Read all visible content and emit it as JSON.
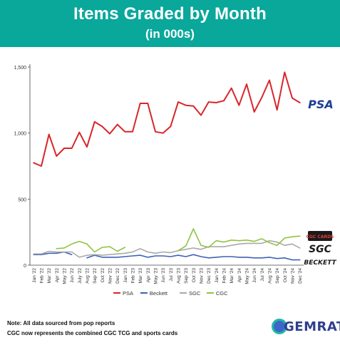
{
  "header": {
    "title": "Items Graded by Month",
    "subtitle": "(in 000s)"
  },
  "notes": [
    "Note: All data sourced from pop reports",
    "CGC now represents the combined CGC TCG and sports cards"
  ],
  "brand": {
    "logo_text": "GEMRATE"
  },
  "logos": {
    "psa": "PSA",
    "cgc": "CGC CARDS",
    "sgc": "SGC",
    "beckett": "BECKETT"
  },
  "colors": {
    "header": "#0aa79b",
    "PSA": "#d8262b",
    "Beckett": "#3f62b7",
    "SGC": "#a9a9a9",
    "CGC": "#8fc441"
  },
  "chart_data": {
    "type": "line",
    "title": "",
    "xlabel": "",
    "ylabel": "",
    "ylim": [
      0,
      1500
    ],
    "yticks": [
      "0",
      "500",
      "1,000",
      "1,500"
    ],
    "legend_position": "bottom",
    "grid": false,
    "categories": [
      "Jan '22",
      "Feb '22",
      "Mar '22",
      "Apr '22",
      "May '22",
      "Jun '22",
      "July '22",
      "Aug '22",
      "Sep '22",
      "Oct '22",
      "Nov '22",
      "Dec '22",
      "Jan '23",
      "Feb '23",
      "Mar '23",
      "Apr '23",
      "May '23",
      "Jun '23",
      "Jul '23",
      "Aug '23",
      "Sep '23",
      "Oct '23",
      "Nov '23",
      "Dec '23",
      "Jan '24",
      "Feb '24",
      "Mar '24",
      "Apr '24",
      "May '24",
      "Jun '24",
      "Jul '24",
      "Aug '24",
      "Sep '24",
      "Oct '24",
      "Nov '24",
      "Dec '24"
    ],
    "series": [
      {
        "name": "PSA",
        "values": [
          775,
          750,
          990,
          825,
          885,
          885,
          1005,
          895,
          1085,
          1050,
          995,
          1065,
          1010,
          1010,
          1225,
          1225,
          1010,
          1000,
          1050,
          1235,
          1210,
          1205,
          1135,
          1235,
          1230,
          1245,
          1340,
          1210,
          1370,
          1160,
          1270,
          1400,
          1175,
          1460,
          1265,
          1230
        ]
      },
      {
        "name": "Beckett",
        "values": [
          80,
          80,
          90,
          90,
          100,
          80,
          null,
          55,
          75,
          60,
          60,
          60,
          65,
          70,
          75,
          60,
          70,
          70,
          65,
          75,
          65,
          80,
          65,
          55,
          60,
          65,
          65,
          60,
          60,
          55,
          55,
          60,
          50,
          55,
          40,
          40
        ]
      },
      {
        "name": "SGC",
        "values": [
          85,
          85,
          105,
          100,
          100,
          100,
          60,
          75,
          80,
          75,
          80,
          85,
          90,
          100,
          125,
          100,
          90,
          100,
          95,
          110,
          120,
          130,
          120,
          140,
          140,
          140,
          150,
          160,
          165,
          165,
          165,
          185,
          175,
          150,
          160,
          130
        ]
      },
      {
        "name": "CGC",
        "values": [
          null,
          null,
          null,
          125,
          130,
          160,
          180,
          160,
          100,
          135,
          140,
          105,
          135,
          null,
          null,
          null,
          null,
          null,
          null,
          110,
          145,
          275,
          150,
          135,
          185,
          175,
          190,
          185,
          190,
          180,
          200,
          170,
          150,
          205,
          215,
          220
        ]
      }
    ]
  }
}
